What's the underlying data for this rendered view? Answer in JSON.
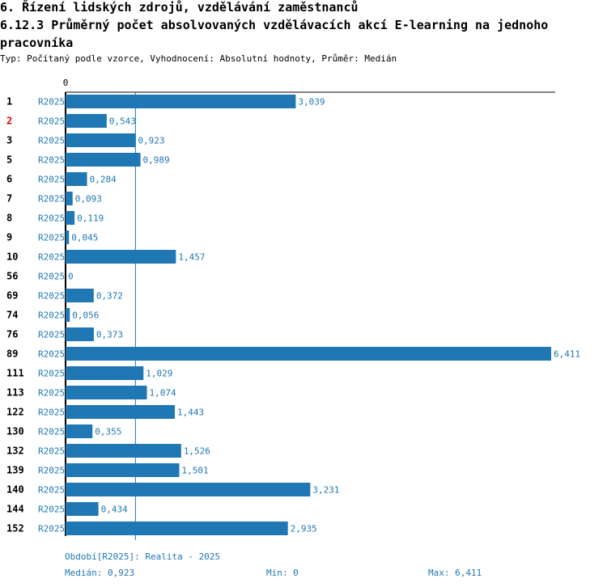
{
  "header": {
    "section_title": "6. Řízení lidských zdrojů, vzdělávání zaměstnanců",
    "chart_title": "6.12.3 Průměrný počet absolvovaných vzdělávacích akcí E-learning na jednoho pracovníka",
    "subtitle": "Typ: Počítaný podle vzorce, Vyhodnocení: Absolutní hodnoty, Průměr: Medián"
  },
  "colors": {
    "bar": "#1f77b4",
    "highlight_label": "#e00000",
    "text": "#000000"
  },
  "chart_data": {
    "type": "bar",
    "orientation": "horizontal",
    "period_label": "R2025",
    "categories": [
      "1",
      "2",
      "3",
      "5",
      "6",
      "7",
      "8",
      "9",
      "10",
      "56",
      "69",
      "74",
      "76",
      "89",
      "111",
      "113",
      "122",
      "130",
      "132",
      "139",
      "140",
      "144",
      "152"
    ],
    "values": [
      3.039,
      0.543,
      0.923,
      0.989,
      0.284,
      0.093,
      0.119,
      0.045,
      1.457,
      0,
      0.372,
      0.056,
      0.373,
      6.411,
      1.029,
      1.074,
      1.443,
      0.355,
      1.526,
      1.501,
      3.231,
      0.434,
      2.935
    ],
    "value_labels": [
      "3,039",
      "0,543",
      "0,923",
      "0,989",
      "0,284",
      "0,093",
      "0,119",
      "0,045",
      "1,457",
      "0",
      "0,372",
      "0,056",
      "0,373",
      "6,411",
      "1,029",
      "1,074",
      "1,443",
      "0,355",
      "1,526",
      "1,501",
      "3,231",
      "0,434",
      "2,935"
    ],
    "highlighted_category": "2",
    "axis_zero_label": "0",
    "xlim": [
      0,
      6.411
    ],
    "median": 0.923
  },
  "footer": {
    "period_legend": "Období[R2025]: Realita - 2025",
    "median_text": "Medián: 0,923",
    "min_text": "Min: 0",
    "max_text": "Max: 6,411"
  }
}
